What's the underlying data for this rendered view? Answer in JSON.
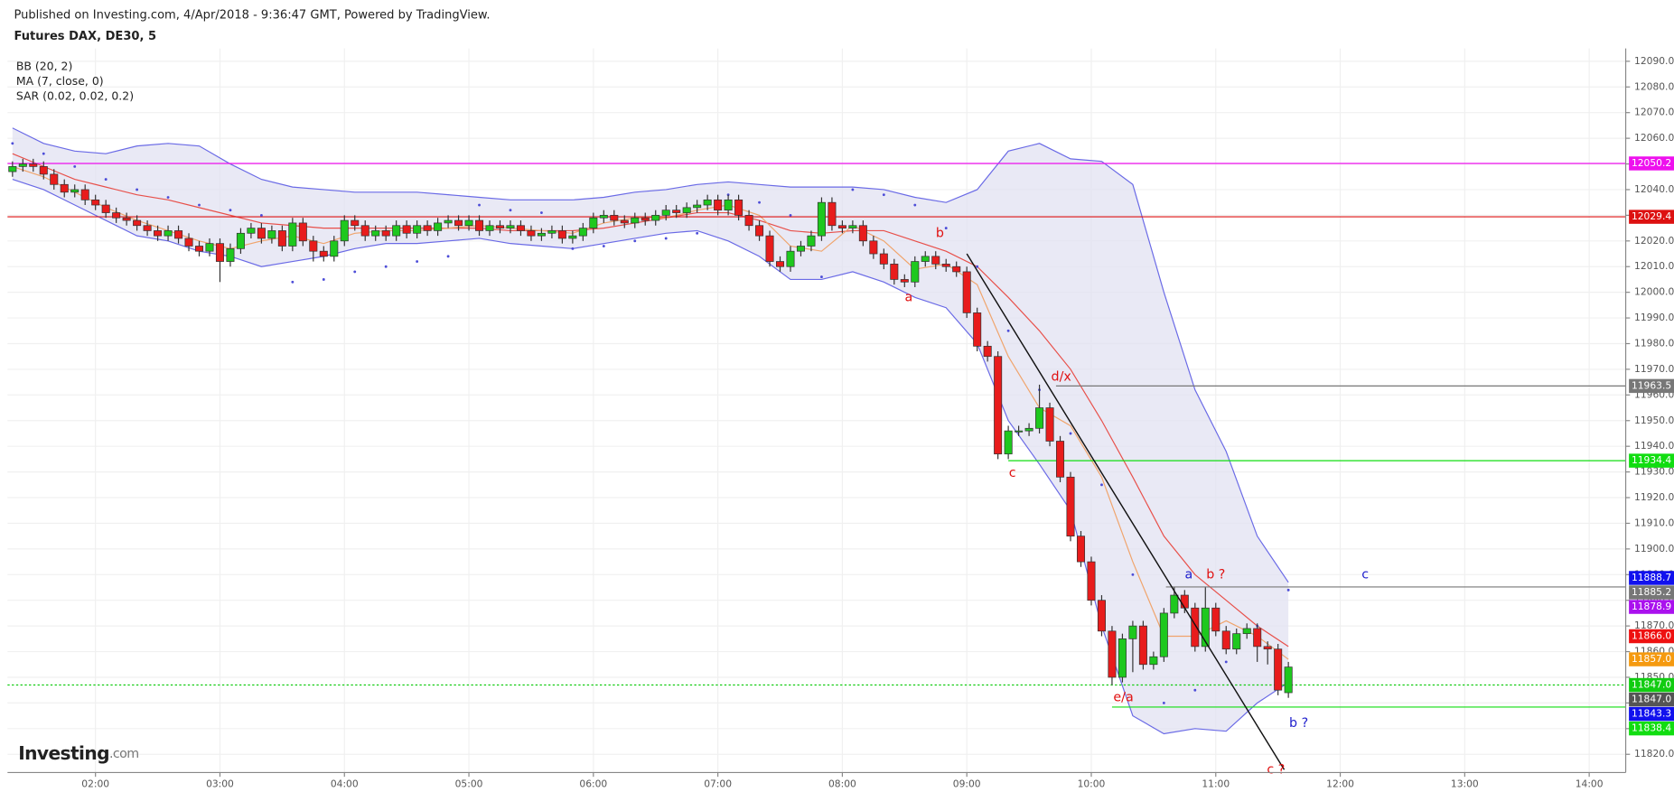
{
  "header": {
    "published": "Published on Investing.com, 4/Apr/2018 - 9:36:47 GMT, Powered by TradingView.",
    "symbol": "Futures DAX, DE30, 5"
  },
  "legend": [
    "BB (20, 2)",
    "MA (7, close, 0)",
    "SAR (0.02, 0.02, 0.2)"
  ],
  "logo": {
    "brand": "Investing",
    "suffix": ".com"
  },
  "chart_data": {
    "type": "candlestick",
    "xlim": [
      77.6,
      857.6
    ],
    "ylim": [
      11812.9,
      12095
    ],
    "xticks": [
      {
        "value": 120,
        "label": "02:00"
      },
      {
        "value": 180,
        "label": "03:00"
      },
      {
        "value": 240,
        "label": "04:00"
      },
      {
        "value": 300,
        "label": "05:00"
      },
      {
        "value": 360,
        "label": "06:00"
      },
      {
        "value": 420,
        "label": "07:00"
      },
      {
        "value": 480,
        "label": "08:00"
      },
      {
        "value": 540,
        "label": "09:00"
      },
      {
        "value": 600,
        "label": "10:00"
      },
      {
        "value": 660,
        "label": "11:00"
      },
      {
        "value": 720,
        "label": "12:00"
      },
      {
        "value": 780,
        "label": "13:00"
      },
      {
        "value": 840,
        "label": "14:00"
      }
    ],
    "yticks": [
      {
        "value": 11820,
        "label": "11820.0"
      },
      {
        "value": 11830,
        "label": "11830.0"
      },
      {
        "value": 11840,
        "label": "11840.0"
      },
      {
        "value": 11850,
        "label": "11850.0"
      },
      {
        "value": 11860,
        "label": "11860.0"
      },
      {
        "value": 11870,
        "label": "11870.0"
      },
      {
        "value": 11880,
        "label": "11880.0"
      },
      {
        "value": 11890,
        "label": "11890.0"
      },
      {
        "value": 11900,
        "label": "11900.0"
      },
      {
        "value": 11910,
        "label": "11910.0"
      },
      {
        "value": 11920,
        "label": "11920.0"
      },
      {
        "value": 11930,
        "label": "11930.0"
      },
      {
        "value": 11940,
        "label": "11940.0"
      },
      {
        "value": 11950,
        "label": "11950.0"
      },
      {
        "value": 11960,
        "label": "11960.0"
      },
      {
        "value": 11970,
        "label": "11970.0"
      },
      {
        "value": 11980,
        "label": "11980.0"
      },
      {
        "value": 11990,
        "label": "11990.0"
      },
      {
        "value": 12000,
        "label": "12000.0"
      },
      {
        "value": 12010,
        "label": "12010.0"
      },
      {
        "value": 12020,
        "label": "12020.0"
      },
      {
        "value": 12030,
        "label": "12030.0"
      },
      {
        "value": 12040,
        "label": "12040.0"
      },
      {
        "value": 12050,
        "label": "12050.0"
      },
      {
        "value": 12060,
        "label": "12060.0"
      },
      {
        "value": 12070,
        "label": "12070.0"
      },
      {
        "value": 12080,
        "label": "12080.0"
      },
      {
        "value": 12090,
        "label": "12090.0"
      }
    ],
    "grid": true,
    "x": [
      80,
      85,
      90,
      95,
      100,
      105,
      110,
      115,
      120,
      125,
      130,
      135,
      140,
      145,
      150,
      155,
      160,
      165,
      170,
      175,
      180,
      185,
      190,
      195,
      200,
      205,
      210,
      215,
      220,
      225,
      230,
      235,
      240,
      245,
      250,
      255,
      260,
      265,
      270,
      275,
      280,
      285,
      290,
      295,
      300,
      305,
      310,
      315,
      320,
      325,
      330,
      335,
      340,
      345,
      350,
      355,
      360,
      365,
      370,
      375,
      380,
      385,
      390,
      395,
      400,
      405,
      410,
      415,
      420,
      425,
      430,
      435,
      440,
      445,
      450,
      455,
      460,
      465,
      470,
      475,
      480,
      485,
      490,
      495,
      500,
      505,
      510,
      515,
      520,
      525,
      530,
      535,
      540,
      545,
      550,
      555,
      560,
      565,
      570,
      575,
      580,
      585,
      590,
      595,
      600,
      605,
      610,
      615,
      620,
      625,
      630,
      635,
      640,
      645,
      650,
      655,
      660,
      665,
      670,
      675,
      680,
      685,
      690,
      695
    ],
    "open": [
      12047,
      12049,
      12050,
      12049,
      12046,
      12042,
      12039,
      12040,
      12036,
      12034,
      12031,
      12029,
      12028,
      12026,
      12024,
      12022,
      12024,
      12021,
      12018,
      12016,
      12019,
      12012,
      12017,
      12023,
      12025,
      12021,
      12024,
      12018,
      12027,
      12020,
      12016,
      12014,
      12020,
      12028,
      12026,
      12022,
      12024,
      12022,
      12026,
      12023,
      12026,
      12024,
      12027,
      12028,
      12026,
      12028,
      12024,
      12026,
      12025,
      12026,
      12024,
      12022,
      12023,
      12024,
      12021,
      12022,
      12025,
      12029,
      12030,
      12028,
      12027,
      12029,
      12028,
      12030,
      12032,
      12031,
      12033,
      12034,
      12036,
      12032,
      12036,
      12030,
      12026,
      12022,
      12012,
      12010,
      12016,
      12018,
      12022,
      12035,
      12026,
      12025,
      12026,
      12020,
      12015,
      12011,
      12005,
      12004,
      12012,
      12014,
      12011,
      12010,
      12008,
      11992,
      11979,
      11975,
      11937,
      11946,
      11946,
      11947,
      11955,
      11942,
      11928,
      11905,
      11895,
      11880,
      11868,
      11850,
      11865,
      11870,
      11855,
      11858,
      11875,
      11882,
      11877,
      11862,
      11877,
      11868,
      11861,
      11867,
      11869,
      11862,
      11861,
      11844
    ],
    "high": [
      12051,
      12052,
      12052,
      12051,
      12048,
      12044,
      12042,
      12042,
      12038,
      12036,
      12033,
      12031,
      12030,
      12028,
      12026,
      12026,
      12026,
      12023,
      12020,
      12021,
      12021,
      12019,
      12025,
      12027,
      12027,
      12026,
      12026,
      12029,
      12029,
      12022,
      12018,
      12022,
      12030,
      12030,
      12028,
      12026,
      12026,
      12028,
      12028,
      12028,
      12028,
      12029,
      12030,
      12030,
      12030,
      12030,
      12028,
      12028,
      12028,
      12028,
      12026,
      12025,
      12026,
      12026,
      12024,
      12027,
      12031,
      12032,
      12032,
      12030,
      12031,
      12031,
      12032,
      12034,
      12034,
      12035,
      12036,
      12038,
      12038,
      12038,
      12038,
      12032,
      12028,
      12024,
      12014,
      12018,
      12020,
      12024,
      12037,
      12037,
      12028,
      12028,
      12028,
      12022,
      12017,
      12013,
      12007,
      12014,
      12016,
      12016,
      12013,
      12012,
      12010,
      11994,
      11981,
      11977,
      11948,
      11948,
      11949,
      11964,
      11957,
      11944,
      11930,
      11907,
      11897,
      11882,
      11870,
      11867,
      11872,
      11872,
      11860,
      11877,
      11885,
      11884,
      11879,
      11885,
      11879,
      11870,
      11869,
      11871,
      11871,
      11864,
      11863,
      11856
    ],
    "low": [
      12045,
      12047,
      12047,
      12044,
      12040,
      12037,
      12037,
      12034,
      12032,
      12029,
      12027,
      12026,
      12024,
      12022,
      12020,
      12020,
      12019,
      12016,
      12014,
      12014,
      12004,
      12010,
      12015,
      12021,
      12019,
      12019,
      12016,
      12016,
      12018,
      12012,
      12012,
      12012,
      12018,
      12024,
      12020,
      12020,
      12020,
      12020,
      12021,
      12021,
      12022,
      12022,
      12025,
      12024,
      12024,
      12022,
      12022,
      12023,
      12023,
      12022,
      12020,
      12020,
      12021,
      12019,
      12019,
      12020,
      12023,
      12027,
      12026,
      12025,
      12025,
      12026,
      12026,
      12028,
      12029,
      12029,
      12031,
      12032,
      12030,
      12030,
      12028,
      12024,
      12020,
      12010,
      12008,
      12008,
      12014,
      12016,
      12020,
      12024,
      12023,
      12023,
      12018,
      12013,
      12009,
      12003,
      12002,
      12002,
      12010,
      12009,
      12008,
      12006,
      11990,
      11977,
      11973,
      11935,
      11935,
      11944,
      11944,
      11945,
      11940,
      11926,
      11903,
      11893,
      11878,
      11866,
      11847,
      11848,
      11852,
      11853,
      11853,
      11856,
      11873,
      11875,
      11860,
      11860,
      11866,
      11859,
      11859,
      11865,
      11856,
      11855,
      11843,
      11842
    ],
    "close": [
      12049,
      12050,
      12049,
      12046,
      12042,
      12039,
      12040,
      12036,
      12034,
      12031,
      12029,
      12028,
      12026,
      12024,
      12022,
      12024,
      12021,
      12018,
      12016,
      12019,
      12012,
      12017,
      12023,
      12025,
      12021,
      12024,
      12018,
      12027,
      12020,
      12016,
      12014,
      12020,
      12028,
      12026,
      12022,
      12024,
      12022,
      12026,
      12023,
      12026,
      12024,
      12027,
      12028,
      12026,
      12028,
      12024,
      12026,
      12025,
      12026,
      12024,
      12022,
      12023,
      12024,
      12021,
      12022,
      12025,
      12029,
      12030,
      12028,
      12027,
      12029,
      12028,
      12030,
      12032,
      12031,
      12033,
      12034,
      12036,
      12032,
      12036,
      12030,
      12026,
      12022,
      12012,
      12010,
      12016,
      12018,
      12022,
      12035,
      12026,
      12025,
      12026,
      12020,
      12015,
      12011,
      12005,
      12004,
      12012,
      12014,
      12011,
      12010,
      12008,
      11992,
      11979,
      11975,
      11937,
      11946,
      11946,
      11947,
      11955,
      11942,
      11928,
      11905,
      11895,
      11880,
      11868,
      11850,
      11865,
      11870,
      11855,
      11858,
      11875,
      11882,
      11877,
      11862,
      11877,
      11868,
      11861,
      11867,
      11869,
      11862,
      11861,
      11845,
      11854
    ],
    "up_color": "#1ec81e",
    "down_color": "#e81c1c",
    "indicator_x": [
      80,
      95,
      110,
      125,
      140,
      155,
      170,
      185,
      200,
      215,
      230,
      245,
      260,
      275,
      290,
      305,
      320,
      335,
      350,
      365,
      380,
      395,
      410,
      425,
      440,
      455,
      470,
      485,
      500,
      515,
      530,
      545,
      560,
      575,
      590,
      605,
      620,
      635,
      650,
      665,
      680,
      695
    ],
    "bb_upper": [
      12064,
      12058,
      12055,
      12054,
      12057,
      12058,
      12057,
      12050,
      12044,
      12041,
      12040,
      12039,
      12039,
      12039,
      12038,
      12037,
      12036,
      12036,
      12036,
      12037,
      12039,
      12040,
      12042,
      12043,
      12042,
      12041,
      12041,
      12041,
      12040,
      12037,
      12035,
      12040,
      12055,
      12058,
      12052,
      12051,
      12042,
      12000,
      11962,
      11938,
      11905,
      11887
    ],
    "bb_lower": [
      12044,
      12040,
      12034,
      12028,
      12022,
      12020,
      12016,
      12014,
      12010,
      12012,
      12014,
      12017,
      12019,
      12019,
      12020,
      12021,
      12019,
      12018,
      12017,
      12019,
      12021,
      12023,
      12024,
      12020,
      12014,
      12005,
      12005,
      12008,
      12004,
      11998,
      11994,
      11980,
      11950,
      11933,
      11915,
      11870,
      11835,
      11828,
      11830,
      11829,
      11840,
      11848
    ],
    "bb_basis": [
      12054,
      12049,
      12044,
      12041,
      12038,
      12036,
      12033,
      12030,
      12027,
      12026,
      12025,
      12025,
      12025,
      12025,
      12025,
      12025,
      12024,
      12024,
      12024,
      12025,
      12027,
      12029,
      12031,
      12031,
      12028,
      12024,
      12023,
      12024,
      12024,
      12020,
      12016,
      12010,
      11998,
      11985,
      11970,
      11950,
      11928,
      11905,
      11890,
      11880,
      11870,
      11862
    ],
    "ma7": [
      12049,
      12045,
      12039,
      12033,
      12028,
      12024,
      12020,
      12017,
      12020,
      12022,
      12019,
      12023,
      12024,
      12024,
      12025,
      12026,
      12025,
      12024,
      12023,
      12027,
      12029,
      12029,
      12032,
      12034,
      12030,
      12018,
      12016,
      12026,
      12020,
      12009,
      12011,
      12003,
      11975,
      11955,
      11948,
      11928,
      11895,
      11866,
      11866,
      11872,
      11866,
      11857
    ],
    "sar": [
      12058,
      12054,
      12049,
      12044,
      12040,
      12037,
      12034,
      12032,
      12030,
      12004,
      12005,
      12008,
      12010,
      12012,
      12014,
      12034,
      12032,
      12031,
      12017,
      12018,
      12020,
      12021,
      12023,
      12038,
      12035,
      12030,
      12006,
      12040,
      12038,
      12034,
      12025,
      12010,
      11985,
      11962,
      11945,
      11925,
      11890,
      11840,
      11845,
      11856,
      11870,
      11884
    ],
    "indicator_colors": {
      "band_fill": "#e2e2f2",
      "band_line": "#6a6ae6",
      "basis": "#e8504a",
      "ma7": "#f0a46c",
      "sar": "#4d4dd8"
    },
    "trendline": {
      "x": [
        540,
        693
      ],
      "values": [
        12015,
        11814
      ],
      "color": "#111"
    },
    "hlines": [
      {
        "value": 12050.2,
        "label": "12050.2",
        "color": "#ee11ee",
        "from": 77.6,
        "dashed": false
      },
      {
        "value": 12029.4,
        "label": "12029.4",
        "color": "#dd1111",
        "from": 77.6,
        "dashed": false
      },
      {
        "value": 11963.5,
        "label": "11963.5",
        "color": "#777777",
        "from": 583,
        "dashed": false
      },
      {
        "value": 11934.4,
        "label": "11934.4",
        "color": "#11dd11",
        "from": 560,
        "dashed": false
      },
      {
        "value": 11885.2,
        "label": "11885.2",
        "color": "#777777",
        "from": 636,
        "dashed": false
      },
      {
        "value": 11847.0,
        "label": "11847.0",
        "color": "#11cc11",
        "from": 77.6,
        "dashed": true
      },
      {
        "value": 11838.4,
        "label": "11838.4",
        "color": "#11dd11",
        "from": 610,
        "dashed": false
      }
    ],
    "price_labels": [
      {
        "value": 11888.7,
        "label": "11888.7",
        "color": "#1111ee"
      },
      {
        "value": 11878.9,
        "label": "11878.9",
        "color": "#aa11ee"
      },
      {
        "value": 11866.0,
        "label": "11866.0",
        "color": "#ee1111"
      },
      {
        "value": 11857.0,
        "label": "11857.0",
        "color": "#f59a10"
      },
      {
        "value": 11847.0,
        "label": "11847.0",
        "color": "#555555"
      },
      {
        "value": 11843.3,
        "label": "11843.3",
        "color": "#1111ee"
      }
    ],
    "annotations": [
      {
        "text": "a",
        "x": 512,
        "y": 11998,
        "color": "#e01010"
      },
      {
        "text": "b",
        "x": 527,
        "y": 12023,
        "color": "#e01010"
      },
      {
        "text": "c",
        "x": 562,
        "y": 11929.5,
        "color": "#e01010"
      },
      {
        "text": "d/x",
        "x": 585.5,
        "y": 11967,
        "color": "#e01010"
      },
      {
        "text": "e/a",
        "x": 615.5,
        "y": 11842,
        "color": "#e01010"
      },
      {
        "text": "a",
        "x": 647,
        "y": 11890,
        "color": "#2020cc"
      },
      {
        "text": "b ?",
        "x": 660,
        "y": 11890,
        "color": "#e01010"
      },
      {
        "text": "c",
        "x": 732,
        "y": 11890,
        "color": "#2020cc"
      },
      {
        "text": "b ?",
        "x": 700,
        "y": 11832,
        "color": "#2020cc"
      },
      {
        "text": "c ?",
        "x": 689,
        "y": 11814,
        "color": "#e01010"
      }
    ]
  }
}
